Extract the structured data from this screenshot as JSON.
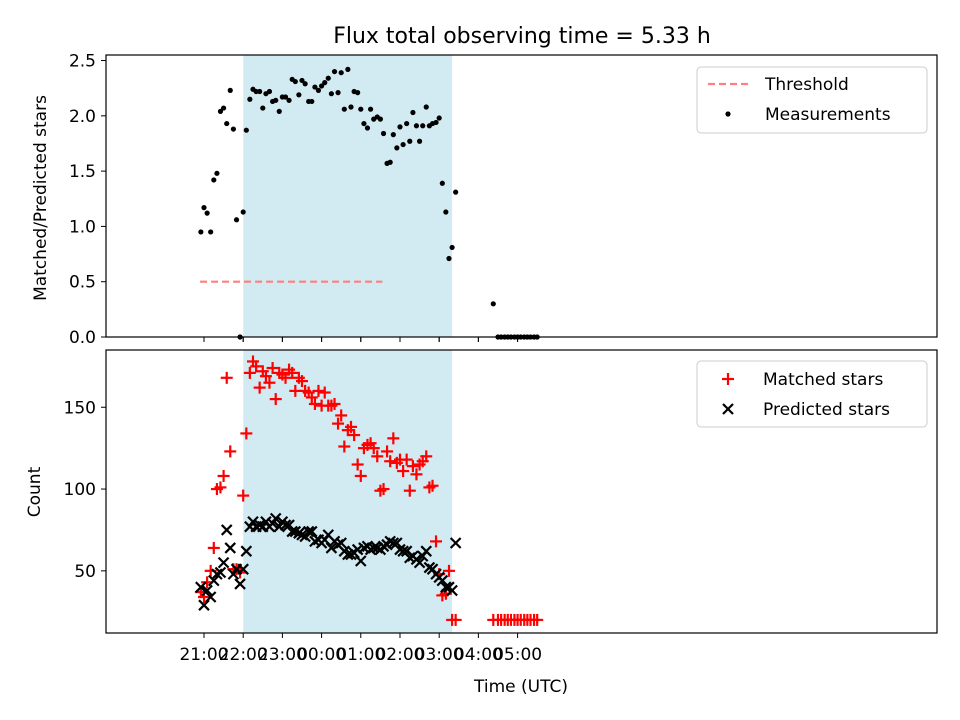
{
  "chart_data": [
    {
      "type": "scatter",
      "title": "Flux total observing time = 5.33 h",
      "ylabel": "Matched/Predicted stars",
      "xlabel": "",
      "xlim": [
        -1.5,
        19.7
      ],
      "ylim": [
        0,
        2.55
      ],
      "x_unit": "hours after 20:00 UTC (tick labels shown as clock times)",
      "xticks": [
        1,
        2,
        3,
        4,
        5,
        6,
        7,
        8,
        9
      ],
      "yticks": [
        0.0,
        0.5,
        1.0,
        1.5,
        2.0,
        2.5
      ],
      "ytick_labels": [
        "0.0",
        "0.5",
        "1.0",
        "1.5",
        "2.0",
        "2.5"
      ],
      "shaded_span": [
        22.0,
        27.33
      ],
      "threshold": {
        "name": "Threshold",
        "y": 0.5,
        "x_range": [
          20.9,
          25.55
        ]
      },
      "series": [
        {
          "name": "Measurements",
          "x": [
            20.92,
            21.0,
            21.08,
            21.17,
            21.25,
            21.33,
            21.42,
            21.5,
            21.58,
            21.67,
            21.75,
            21.83,
            21.92,
            22.0,
            22.08,
            22.17,
            22.25,
            22.33,
            22.42,
            22.5,
            22.58,
            22.67,
            22.75,
            22.83,
            22.92,
            23.0,
            23.08,
            23.17,
            23.25,
            23.33,
            23.42,
            23.5,
            23.58,
            23.67,
            23.75,
            23.83,
            23.92,
            24.0,
            24.08,
            24.17,
            24.25,
            24.33,
            24.42,
            24.5,
            24.58,
            24.67,
            24.75,
            24.83,
            24.92,
            25.0,
            25.08,
            25.17,
            25.25,
            25.33,
            25.42,
            25.5,
            25.58,
            25.67,
            25.75,
            25.83,
            25.92,
            26.0,
            26.08,
            26.17,
            26.25,
            26.33,
            26.42,
            26.5,
            26.58,
            26.67,
            26.75,
            26.83,
            26.92,
            27.0,
            27.08,
            27.17,
            27.25,
            27.33,
            27.42,
            28.38,
            28.5,
            28.58,
            28.67,
            28.75,
            28.83,
            28.92,
            29.0,
            29.08,
            29.17,
            29.25,
            29.33,
            29.42,
            29.5
          ],
          "values": [
            0.95,
            1.17,
            1.12,
            0.95,
            1.42,
            1.48,
            2.04,
            2.07,
            1.93,
            2.23,
            1.88,
            1.06,
            0.0,
            1.13,
            1.87,
            2.15,
            2.24,
            2.22,
            2.22,
            2.07,
            2.2,
            2.22,
            2.13,
            2.14,
            2.04,
            2.17,
            2.17,
            2.14,
            2.33,
            2.31,
            2.19,
            2.32,
            2.29,
            2.13,
            2.13,
            2.26,
            2.23,
            2.27,
            2.3,
            2.34,
            2.2,
            2.4,
            2.21,
            2.39,
            2.06,
            2.42,
            2.08,
            2.22,
            2.21,
            2.06,
            1.93,
            1.89,
            2.06,
            1.97,
            1.99,
            1.97,
            1.84,
            1.57,
            1.58,
            1.83,
            1.71,
            1.9,
            1.74,
            1.93,
            1.77,
            2.03,
            1.91,
            1.77,
            1.91,
            2.08,
            1.91,
            1.93,
            1.94,
            1.98,
            1.39,
            1.13,
            0.71,
            0.81,
            1.31,
            0.3,
            0.0,
            0.0,
            0.0,
            0.0,
            0.0,
            0.0,
            0.0,
            0.0,
            0.0,
            0.0,
            0.0,
            0.0,
            0.0
          ]
        }
      ],
      "legend": {
        "position": "top-right",
        "entries": [
          "Threshold",
          "Measurements"
        ]
      },
      "colors": {
        "threshold": "#ff7f7f",
        "measurements": "#000000",
        "span": "#add8e6"
      }
    },
    {
      "type": "scatter",
      "title": "",
      "xlabel": "Time (UTC)",
      "ylabel": "Count",
      "xlim": [
        -1.5,
        19.7
      ],
      "ylim": [
        12,
        185
      ],
      "x_unit": "hours after 20:00 UTC (tick labels shown as clock times)",
      "xticks": [
        21.0,
        22.0,
        23.0,
        24.0,
        25.0,
        26.0,
        27.0,
        28.0,
        29.0
      ],
      "xtick_labels": [
        "21:00",
        "22:00",
        "23:00",
        "00:00",
        "01:00",
        "02:00",
        "03:00",
        "04:00",
        "05:00"
      ],
      "yticks": [
        50,
        100,
        150
      ],
      "ytick_labels": [
        "50",
        "100",
        "150"
      ],
      "shaded_span": [
        22.0,
        27.33
      ],
      "series": [
        {
          "name": "Matched stars",
          "marker": "+",
          "color": "#ff0000",
          "x": [
            20.92,
            21.0,
            21.08,
            21.17,
            21.25,
            21.33,
            21.42,
            21.5,
            21.58,
            21.67,
            21.75,
            21.83,
            21.92,
            22.0,
            22.08,
            22.17,
            22.25,
            22.33,
            22.42,
            22.5,
            22.58,
            22.67,
            22.75,
            22.83,
            22.92,
            23.0,
            23.08,
            23.17,
            23.25,
            23.33,
            23.42,
            23.5,
            23.58,
            23.67,
            23.75,
            23.83,
            23.92,
            24.0,
            24.08,
            24.17,
            24.25,
            24.33,
            24.42,
            24.5,
            24.58,
            24.67,
            24.75,
            24.83,
            24.92,
            25.0,
            25.08,
            25.17,
            25.25,
            25.33,
            25.42,
            25.5,
            25.58,
            25.67,
            25.75,
            25.83,
            25.92,
            26.0,
            26.08,
            26.17,
            26.25,
            26.33,
            26.42,
            26.5,
            26.58,
            26.67,
            26.75,
            26.83,
            26.92,
            27.0,
            27.08,
            27.17,
            27.25,
            27.33,
            27.42,
            28.38,
            28.5,
            28.58,
            28.67,
            28.75,
            28.83,
            28.92,
            29.0,
            29.08,
            29.17,
            29.25,
            29.33,
            29.42,
            29.5
          ],
          "values": [
            37,
            34,
            43,
            50,
            64,
            100,
            101,
            108,
            168,
            123,
            51,
            51,
            49,
            96,
            134,
            171,
            178,
            175,
            162,
            172,
            169,
            165,
            174,
            155,
            171,
            170,
            168,
            173,
            171,
            160,
            168,
            166,
            160,
            159,
            156,
            152,
            160,
            151,
            159,
            151,
            151,
            152,
            140,
            145,
            126,
            136,
            138,
            133,
            115,
            108,
            125,
            127,
            128,
            125,
            120,
            99,
            100,
            123,
            117,
            131,
            116,
            118,
            111,
            118,
            99,
            114,
            109,
            115,
            117,
            120,
            101,
            102,
            68,
            48,
            35,
            36,
            50,
            20,
            20,
            20,
            20,
            20,
            20,
            20,
            20,
            20,
            20,
            20,
            20,
            20,
            20,
            20,
            20
          ]
        },
        {
          "name": "Predicted stars",
          "marker": "x",
          "color": "#000000",
          "x": [
            20.92,
            21.0,
            21.08,
            21.17,
            21.25,
            21.33,
            21.42,
            21.5,
            21.58,
            21.67,
            21.75,
            21.83,
            21.92,
            22.0,
            22.08,
            22.17,
            22.25,
            22.33,
            22.42,
            22.5,
            22.58,
            22.67,
            22.75,
            22.83,
            22.92,
            23.0,
            23.08,
            23.17,
            23.25,
            23.33,
            23.42,
            23.5,
            23.58,
            23.67,
            23.75,
            23.83,
            23.92,
            24.0,
            24.08,
            24.17,
            24.25,
            24.33,
            24.42,
            24.5,
            24.58,
            24.67,
            24.75,
            24.83,
            24.92,
            25.0,
            25.08,
            25.17,
            25.25,
            25.33,
            25.42,
            25.5,
            25.58,
            25.67,
            25.75,
            25.83,
            25.92,
            26.0,
            26.08,
            26.17,
            26.25,
            26.33,
            26.42,
            26.5,
            26.58,
            26.67,
            26.75,
            26.83,
            26.92,
            27.0,
            27.08,
            27.17,
            27.25,
            27.33,
            27.42
          ],
          "values": [
            40,
            29,
            38,
            34,
            44,
            48,
            49,
            55,
            75,
            64,
            48,
            51,
            42,
            51,
            62,
            77,
            80,
            77,
            78,
            77,
            80,
            77,
            79,
            82,
            77,
            80,
            78,
            78,
            74,
            74,
            73,
            72,
            71,
            74,
            74,
            68,
            69,
            67,
            69,
            72,
            64,
            68,
            66,
            67,
            62,
            60,
            60,
            61,
            63,
            56,
            64,
            65,
            63,
            64,
            64,
            63,
            65,
            66,
            68,
            67,
            67,
            63,
            62,
            62,
            58,
            59,
            57,
            55,
            59,
            62,
            52,
            51,
            48,
            46,
            44,
            40,
            40,
            38,
            67
          ]
        }
      ],
      "legend": {
        "position": "top-right",
        "entries": [
          "Matched stars",
          "Predicted stars"
        ]
      },
      "colors": {
        "span": "#add8e6"
      }
    }
  ]
}
